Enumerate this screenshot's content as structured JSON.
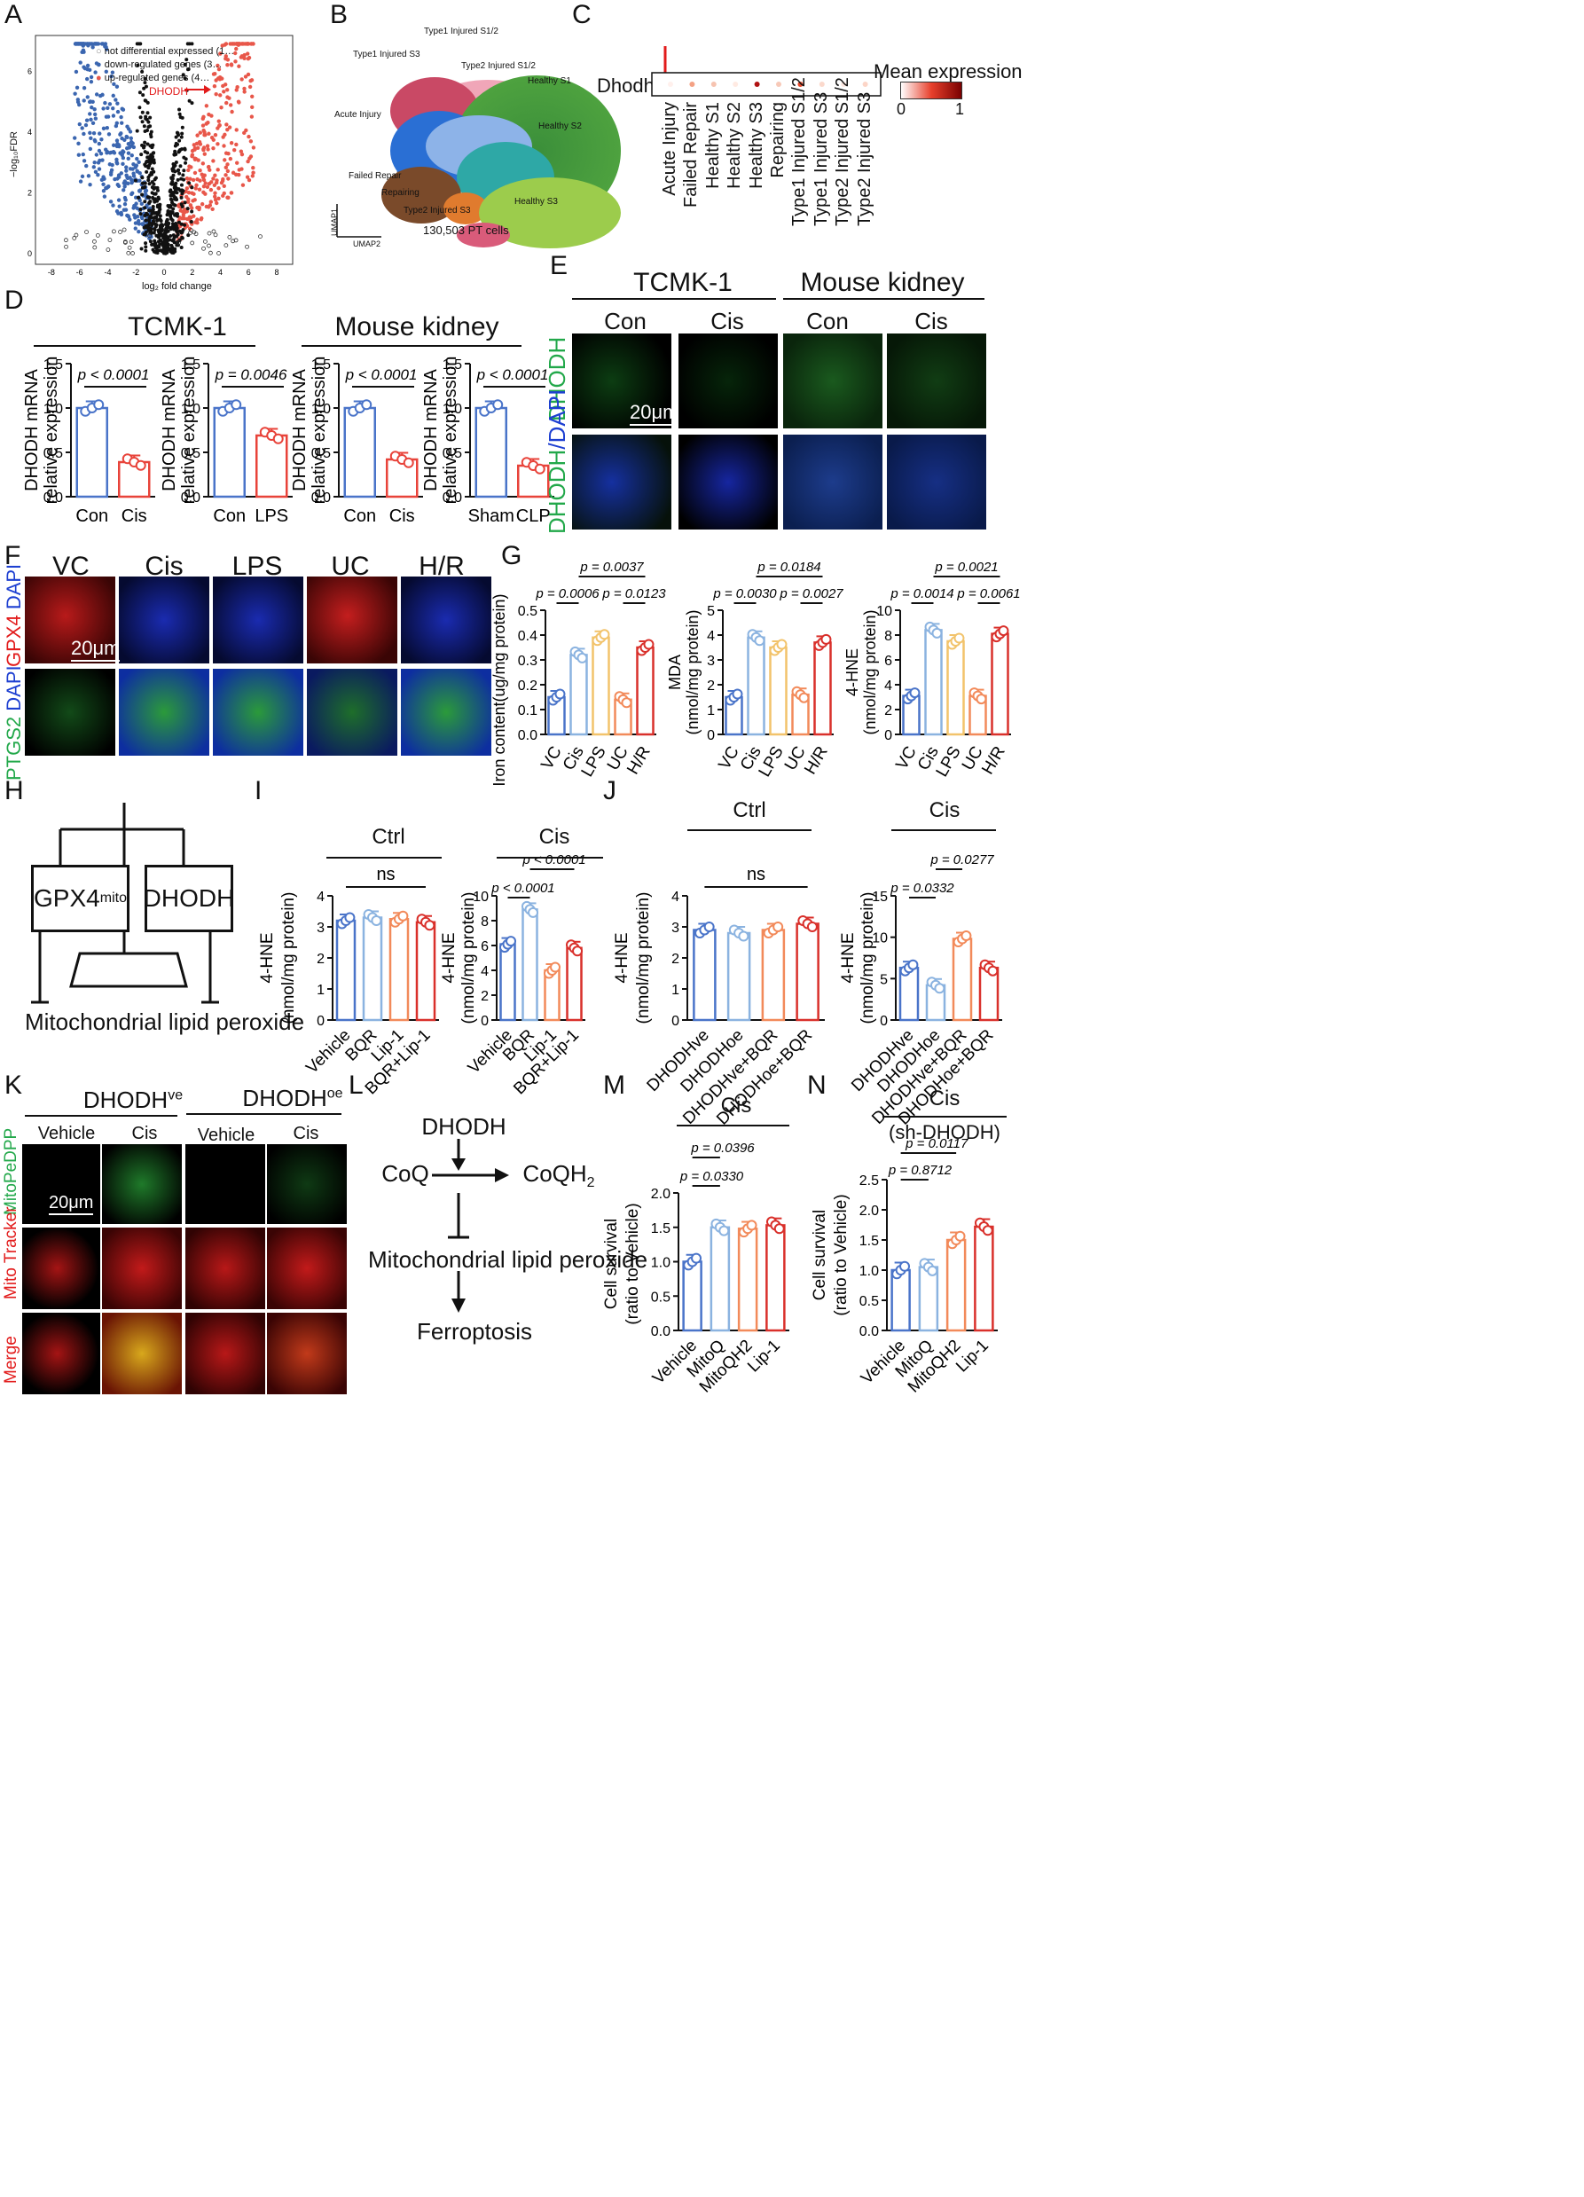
{
  "panels": {
    "A": {
      "letter": "A",
      "legend": [
        "not differential expressed (1…",
        "down-regulated genes (3…",
        "up-regulated genes (4…"
      ],
      "highlight": "DHODH",
      "xlabel": "log₂ fold change",
      "ylabel": "−log₁₀FDR",
      "xticks": [
        "-8",
        "-6",
        "-4",
        "-2",
        "0",
        "2",
        "4",
        "6",
        "8"
      ],
      "yticks": [
        "0",
        "2",
        "4",
        "6"
      ]
    },
    "B": {
      "letter": "B",
      "labels": [
        "Type1 Injured S1/2",
        "Type1 Injured S3",
        "Type2 Injured S1/2",
        "Healthy S1",
        "Acute Injury",
        "Healthy S2",
        "Failed Repair",
        "Repairing",
        "Type2 Injured S3",
        "Healthy S3"
      ],
      "axis1": "UMAP1",
      "axis2": "UMAP2",
      "caption": "130,503 PT cells"
    },
    "C": {
      "letter": "C",
      "gene": "Dhodh",
      "legend_title": "Mean expression",
      "legend_min": "0",
      "legend_max": "1",
      "groups": [
        "Acute Injury",
        "Failed Repair",
        "Healthy S1",
        "Healthy S2",
        "Healthy S3",
        "Repairing",
        "Type1 Injured S1/2",
        "Type1 Injured S3",
        "Type2 Injured S1/2",
        "Type2 Injured S3"
      ]
    },
    "D": {
      "letter": "D",
      "title_left": "TCMK-1",
      "title_right": "Mouse kidney",
      "ylabel1": "DHODH mRNA",
      "ylabel2": "relative expression",
      "charts": [
        {
          "p": "p < 0.0001",
          "cats": [
            "Con",
            "Cis"
          ]
        },
        {
          "p": "p = 0.0046",
          "cats": [
            "Con",
            "LPS"
          ]
        },
        {
          "p": "p < 0.0001",
          "cats": [
            "Con",
            "Cis"
          ]
        },
        {
          "p": "p < 0.0001",
          "cats": [
            "Sham",
            "CLP"
          ]
        }
      ]
    },
    "E": {
      "letter": "E",
      "title_left": "TCMK-1",
      "title_right": "Mouse kidney",
      "cols": [
        "Con",
        "Cis",
        "Con",
        "Cis"
      ],
      "row1": "DHODH",
      "row2a": "DHODH",
      "row2b": "/DAPI",
      "scale": "20μm"
    },
    "F": {
      "letter": "F",
      "cols": [
        "VC",
        "Cis",
        "LPS",
        "UC",
        "H/R"
      ],
      "row1a": "GPX4",
      "row1b": " DAPI",
      "row2a": "PTGS2",
      "row2b": " DAPI",
      "scale": "20μm"
    },
    "G": {
      "letter": "G",
      "charts": [
        {
          "ylabel": "Iron content(ug/mg protein)",
          "p": [
            "p = 0.0037",
            "p = 0.0006",
            "p = 0.0123"
          ]
        },
        {
          "ylabel1": "MDA",
          "ylabel2": "(nmol/mg protein)",
          "p": [
            "p = 0.0184",
            "p = 0.0030",
            "p = 0.0027"
          ]
        },
        {
          "ylabel1": "4-HNE",
          "ylabel2": "(nmol/mg protein)",
          "p": [
            "p = 0.0021",
            "p = 0.0014",
            "p = 0.0061"
          ]
        }
      ]
    },
    "H": {
      "letter": "H",
      "left_box": "GPX4",
      "left_sup": "mito",
      "right_box": "DHODH",
      "bottom": "Mitochondrial lipid peroxide"
    },
    "I": {
      "letter": "I",
      "title_left": "Ctrl",
      "title_right": "Cis",
      "ns": "ns",
      "p": [
        "p < 0.0001",
        "p < 0.0001"
      ],
      "ylabel1": "4-HNE",
      "ylabel2": "(nmol/mg protein)"
    },
    "J": {
      "letter": "J",
      "title_left": "Ctrl",
      "title_right": "Cis",
      "ns": "ns",
      "p": [
        "p = 0.0277",
        "p = 0.0332"
      ],
      "ylabel1": "4-HNE",
      "ylabel2": "(nmol/mg protein)"
    },
    "K": {
      "letter": "K",
      "group1": "DHODH",
      "group1_sup": "ve",
      "group2": "DHODH",
      "group2_sup": "oe",
      "cols": [
        "Vehicle",
        "Cis",
        "Vehicle",
        "Cis"
      ],
      "row1a": "Mito",
      "row1b": "PeDPP",
      "row2a": "Mito",
      "row2b": " Tracker",
      "row3": "Merge",
      "scale": "20μm"
    },
    "L": {
      "letter": "L",
      "top": "DHODH",
      "left": "CoQ",
      "right": "CoQH",
      "right_sub": "2",
      "middle": "Mitochondrial lipid peroxide",
      "bottom": "Ferroptosis"
    },
    "M": {
      "letter": "M",
      "title": "Cis",
      "p": [
        "p = 0.0396",
        "p = 0.0330"
      ],
      "ylabel1": "Cell survival",
      "ylabel2": "(ratio to Vehicle)"
    },
    "N": {
      "letter": "N",
      "title": "Cis",
      "subtitle": "(sh-DHODH)",
      "p": [
        "p = 0.0117",
        "p = 0.8712"
      ],
      "ylabel1": "Cell survival",
      "ylabel2": "(ratio to Vehicle)"
    }
  },
  "chart_data": [
    {
      "id": "D1",
      "type": "bar",
      "categories": [
        "Con",
        "Cis"
      ],
      "values": [
        1.0,
        0.39
      ],
      "ylim": [
        0,
        1.5
      ],
      "yticks": [
        "0.0",
        "0.5",
        "1.0",
        "1.5"
      ],
      "colors": [
        "#4a74c9",
        "#e8433a"
      ]
    },
    {
      "id": "D2",
      "type": "bar",
      "categories": [
        "Con",
        "LPS"
      ],
      "values": [
        1.0,
        0.69
      ],
      "ylim": [
        0,
        1.5
      ],
      "yticks": [
        "0.0",
        "0.5",
        "1.0",
        "1.5"
      ],
      "colors": [
        "#4a74c9",
        "#e8433a"
      ]
    },
    {
      "id": "D3",
      "type": "bar",
      "categories": [
        "Con",
        "Cis"
      ],
      "values": [
        1.0,
        0.42
      ],
      "ylim": [
        0,
        1.5
      ],
      "yticks": [
        "0.0",
        "0.5",
        "1.0",
        "1.5"
      ],
      "colors": [
        "#4a74c9",
        "#e8433a"
      ]
    },
    {
      "id": "D4",
      "type": "bar",
      "categories": [
        "Sham",
        "CLP"
      ],
      "values": [
        1.0,
        0.35
      ],
      "ylim": [
        0,
        1.5
      ],
      "yticks": [
        "0.0",
        "0.5",
        "1.0",
        "1.5"
      ],
      "colors": [
        "#4a74c9",
        "#e8433a"
      ]
    },
    {
      "id": "G1",
      "type": "bar",
      "categories": [
        "VC",
        "Cis",
        "LPS",
        "UC",
        "H/R"
      ],
      "values": [
        0.15,
        0.32,
        0.39,
        0.14,
        0.35
      ],
      "ylim": [
        0,
        0.5
      ],
      "yticks": [
        "0.0",
        "0.1",
        "0.2",
        "0.3",
        "0.4",
        "0.5"
      ],
      "colors": [
        "#4a74c9",
        "#8bb3e0",
        "#f2c36b",
        "#f28a5a",
        "#d9302b"
      ]
    },
    {
      "id": "G2",
      "type": "bar",
      "categories": [
        "VC",
        "Cis",
        "LPS",
        "UC",
        "H/R"
      ],
      "values": [
        1.5,
        3.9,
        3.5,
        1.6,
        3.7
      ],
      "ylim": [
        0,
        5
      ],
      "yticks": [
        "0",
        "1",
        "2",
        "3",
        "4",
        "5"
      ],
      "colors": [
        "#4a74c9",
        "#8bb3e0",
        "#f2c36b",
        "#f28a5a",
        "#d9302b"
      ]
    },
    {
      "id": "G3",
      "type": "bar",
      "categories": [
        "VC",
        "Cis",
        "LPS",
        "UC",
        "H/R"
      ],
      "values": [
        3.1,
        8.4,
        7.5,
        3.1,
        8.1
      ],
      "ylim": [
        0,
        10
      ],
      "yticks": [
        "0",
        "2",
        "4",
        "6",
        "8",
        "10"
      ],
      "colors": [
        "#4a74c9",
        "#8bb3e0",
        "#f2c36b",
        "#f28a5a",
        "#d9302b"
      ]
    },
    {
      "id": "I1",
      "type": "bar",
      "categories": [
        "Vehicle",
        "BQR",
        "Lip-1",
        "BQR+Lip-1"
      ],
      "values": [
        3.2,
        3.3,
        3.25,
        3.15
      ],
      "ylim": [
        0,
        4
      ],
      "yticks": [
        "0",
        "1",
        "2",
        "3",
        "4"
      ],
      "colors": [
        "#4a74c9",
        "#8bb3e0",
        "#f28a5a",
        "#d9302b"
      ]
    },
    {
      "id": "I2",
      "type": "bar",
      "categories": [
        "Vehicle",
        "BQR",
        "Lip-1",
        "BQR+Lip-1"
      ],
      "values": [
        6.1,
        8.9,
        4.0,
        5.8
      ],
      "ylim": [
        0,
        10
      ],
      "yticks": [
        "0",
        "2",
        "4",
        "6",
        "8",
        "10"
      ],
      "colors": [
        "#4a74c9",
        "#8bb3e0",
        "#f28a5a",
        "#d9302b"
      ]
    },
    {
      "id": "J1",
      "type": "bar",
      "categories": [
        "DHODHve",
        "DHODHoe",
        "DHODHve+BQR",
        "DHODHoe+BQR"
      ],
      "values": [
        2.9,
        2.8,
        2.9,
        3.1
      ],
      "ylim": [
        0,
        4
      ],
      "yticks": [
        "0",
        "1",
        "2",
        "3",
        "4"
      ],
      "colors": [
        "#4a74c9",
        "#8bb3e0",
        "#f28a5a",
        "#d9302b"
      ]
    },
    {
      "id": "J2",
      "type": "bar",
      "categories": [
        "DHODHve",
        "DHODHoe",
        "DHODHve+BQR",
        "DHODHoe+BQR"
      ],
      "values": [
        6.3,
        4.2,
        9.8,
        6.3
      ],
      "ylim": [
        0,
        15
      ],
      "yticks": [
        "0",
        "5",
        "10",
        "15"
      ],
      "colors": [
        "#4a74c9",
        "#8bb3e0",
        "#f28a5a",
        "#d9302b"
      ]
    },
    {
      "id": "M1",
      "type": "bar",
      "categories": [
        "Vehicle",
        "MitoQ",
        "MitoQH2",
        "Lip-1"
      ],
      "values": [
        1.0,
        1.5,
        1.48,
        1.53
      ],
      "ylim": [
        0,
        2.0
      ],
      "yticks": [
        "0.0",
        "0.5",
        "1.0",
        "1.5",
        "2.0"
      ],
      "colors": [
        "#4a74c9",
        "#8bb3e0",
        "#f28a5a",
        "#d9302b"
      ]
    },
    {
      "id": "N1",
      "type": "bar",
      "categories": [
        "Vehicle",
        "MitoQ",
        "MitoQH2",
        "Lip-1"
      ],
      "values": [
        1.0,
        1.05,
        1.5,
        1.72
      ],
      "ylim": [
        0,
        2.5
      ],
      "yticks": [
        "0.0",
        "0.5",
        "1.0",
        "1.5",
        "2.0",
        "2.5"
      ],
      "colors": [
        "#4a74c9",
        "#8bb3e0",
        "#f28a5a",
        "#d9302b"
      ]
    }
  ]
}
